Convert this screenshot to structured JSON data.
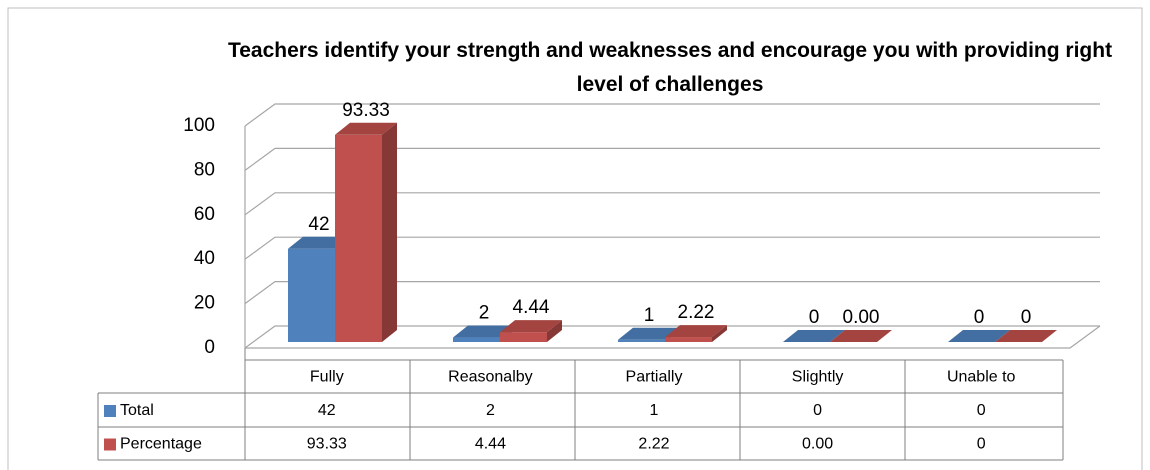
{
  "chart_data": {
    "type": "bar3d",
    "title": "Teachers identify your strength and weaknesses and encourage you with providing right level of challenges",
    "categories": [
      "Fully",
      "Reasonalby",
      "Partially",
      "Slightly",
      "Unable to"
    ],
    "series": [
      {
        "name": "Total",
        "color": "#4f81bd",
        "values": [
          42,
          2,
          1,
          0,
          0
        ]
      },
      {
        "name": "Percentage",
        "color": "#c0504d",
        "values": [
          93.33,
          4.44,
          2.22,
          0,
          0
        ],
        "value_labels": [
          "93.33",
          "4.44",
          "2.22",
          "0.00",
          "0"
        ]
      }
    ],
    "ylim": [
      0,
      100
    ],
    "yticks": [
      0,
      20,
      40,
      60,
      80,
      100
    ],
    "grid": true,
    "data_table": true
  }
}
